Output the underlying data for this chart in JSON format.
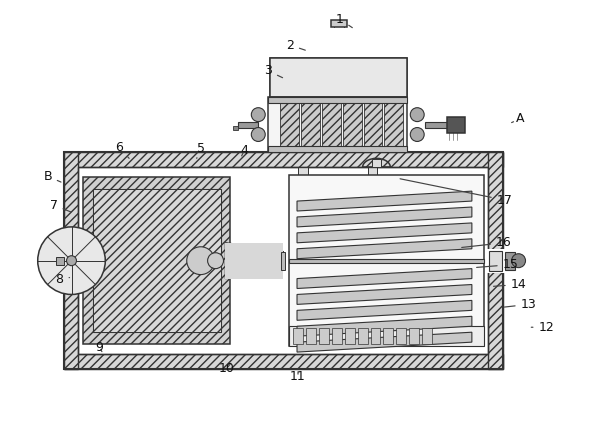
{
  "background": "#ffffff",
  "line_color": "#333333",
  "annotations": [
    [
      "1",
      355,
      28,
      340,
      18
    ],
    [
      "2",
      308,
      50,
      290,
      44
    ],
    [
      "3",
      285,
      78,
      268,
      70
    ],
    [
      "A",
      513,
      122,
      522,
      118
    ],
    [
      "B",
      62,
      183,
      46,
      176
    ],
    [
      "4",
      240,
      158,
      244,
      150
    ],
    [
      "5",
      196,
      158,
      200,
      148
    ],
    [
      "6",
      128,
      158,
      118,
      147
    ],
    [
      "7",
      72,
      213,
      52,
      205
    ],
    [
      "8",
      68,
      278,
      58,
      280
    ],
    [
      "9",
      102,
      355,
      98,
      348
    ],
    [
      "10",
      232,
      362,
      226,
      370
    ],
    [
      "11",
      298,
      370,
      298,
      378
    ],
    [
      "12",
      530,
      328,
      548,
      328
    ],
    [
      "13",
      503,
      308,
      530,
      305
    ],
    [
      "14",
      492,
      287,
      520,
      285
    ],
    [
      "15",
      475,
      268,
      512,
      265
    ],
    [
      "16",
      460,
      248,
      505,
      243
    ],
    [
      "17",
      398,
      178,
      506,
      200
    ]
  ]
}
